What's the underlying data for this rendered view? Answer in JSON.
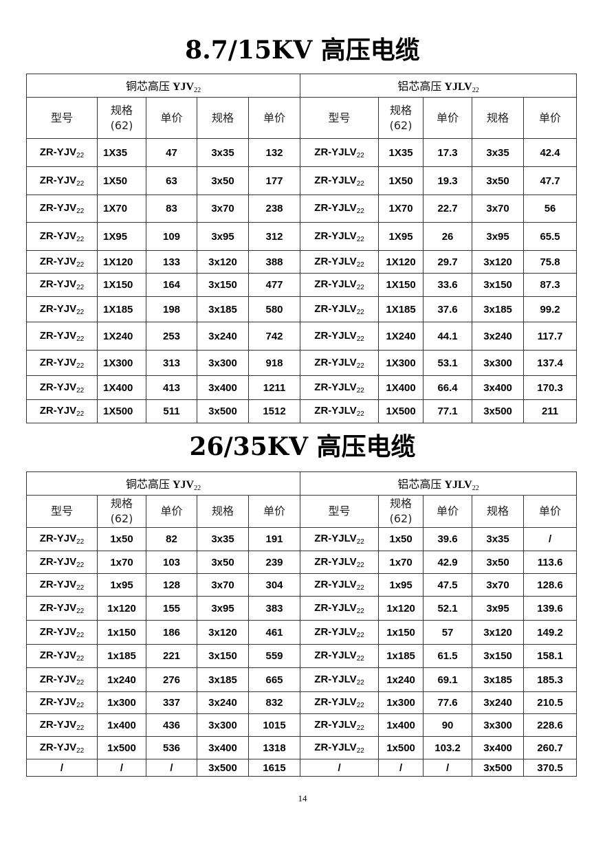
{
  "tables": [
    {
      "title": "8.7/15KV 高压电缆",
      "copper_header": {
        "prefix": "铜芯高压 ",
        "code": "YJV",
        "sub": "22"
      },
      "aluminum_header": {
        "prefix": "铝芯高压 ",
        "code": "YJLV",
        "sub": "22"
      },
      "columns": [
        "型号",
        "规格\n(62)",
        "单价",
        "规格",
        "单价",
        "型号",
        "规格\n(62)",
        "单价",
        "规格",
        "单价"
      ],
      "rows": [
        [
          [
            "ZR-YJV",
            "22"
          ],
          "1X35",
          "47",
          "3x35",
          "132",
          [
            "ZR-YJLV",
            "22"
          ],
          "1X35",
          "17.3",
          "3x35",
          "42.4"
        ],
        [
          [
            "ZR-YJV",
            "22"
          ],
          "1X50",
          "63",
          "3x50",
          "177",
          [
            "ZR-YJLV",
            "22"
          ],
          "1X50",
          "19.3",
          "3x50",
          "47.7"
        ],
        [
          [
            "ZR-YJV",
            "22"
          ],
          "1X70",
          "83",
          "3x70",
          "238",
          [
            "ZR-YJLV",
            "22"
          ],
          "1X70",
          "22.7",
          "3x70",
          "56"
        ],
        [
          [
            "ZR-YJV",
            "22"
          ],
          "1X95",
          "109",
          "3x95",
          "312",
          [
            "ZR-YJLV",
            "22"
          ],
          "1X95",
          "26",
          "3x95",
          "65.5"
        ],
        [
          [
            "ZR-YJV",
            "22"
          ],
          "1X120",
          "133",
          "3x120",
          "388",
          [
            "ZR-YJLV",
            "22"
          ],
          "1X120",
          "29.7",
          "3x120",
          "75.8"
        ],
        [
          [
            "ZR-YJV",
            "22"
          ],
          "1X150",
          "164",
          "3x150",
          "477",
          [
            "ZR-YJLV",
            "22"
          ],
          "1X150",
          "33.6",
          "3x150",
          "87.3"
        ],
        [
          [
            "ZR-YJV",
            "22"
          ],
          "1X185",
          "198",
          "3x185",
          "580",
          [
            "ZR-YJLV",
            "22"
          ],
          "1X185",
          "37.6",
          "3x185",
          "99.2"
        ],
        [
          [
            "ZR-YJV",
            "22"
          ],
          "1X240",
          "253",
          "3x240",
          "742",
          [
            "ZR-YJLV",
            "22"
          ],
          "1X240",
          "44.1",
          "3x240",
          "117.7"
        ],
        [
          [
            "ZR-YJV",
            "22"
          ],
          "1X300",
          "313",
          "3x300",
          "918",
          [
            "ZR-YJLV",
            "22"
          ],
          "1X300",
          "53.1",
          "3x300",
          "137.4"
        ],
        [
          [
            "ZR-YJV",
            "22"
          ],
          "1X400",
          "413",
          "3x400",
          "1211",
          [
            "ZR-YJLV",
            "22"
          ],
          "1X400",
          "66.4",
          "3x400",
          "170.3"
        ],
        [
          [
            "ZR-YJV",
            "22"
          ],
          "1X500",
          "511",
          "3x500",
          "1512",
          [
            "ZR-YJLV",
            "22"
          ],
          "1X500",
          "77.1",
          "3x500",
          "211"
        ]
      ]
    },
    {
      "title": "26/35KV 高压电缆",
      "copper_header": {
        "prefix": "铜芯高压 ",
        "code": "YJV",
        "sub": "22"
      },
      "aluminum_header": {
        "prefix": "铝芯高压 ",
        "code": "YJLV",
        "sub": "22"
      },
      "columns": [
        "型号",
        "规格\n(62)",
        "单价",
        "规格",
        "单价",
        "型号",
        "规格\n(62)",
        "单价",
        "规格",
        "单价"
      ],
      "rows": [
        [
          [
            "ZR-YJV",
            "22"
          ],
          "1x50",
          "82",
          "3x35",
          "191",
          [
            "ZR-YJLV",
            "22"
          ],
          "1x50",
          "39.6",
          "3x35",
          "/"
        ],
        [
          [
            "ZR-YJV",
            "22"
          ],
          "1x70",
          "103",
          "3x50",
          "239",
          [
            "ZR-YJLV",
            "22"
          ],
          "1x70",
          "42.9",
          "3x50",
          "113.6"
        ],
        [
          [
            "ZR-YJV",
            "22"
          ],
          "1x95",
          "128",
          "3x70",
          "304",
          [
            "ZR-YJLV",
            "22"
          ],
          "1x95",
          "47.5",
          "3x70",
          "128.6"
        ],
        [
          [
            "ZR-YJV",
            "22"
          ],
          "1x120",
          "155",
          "3x95",
          "383",
          [
            "ZR-YJLV",
            "22"
          ],
          "1x120",
          "52.1",
          "3x95",
          "139.6"
        ],
        [
          [
            "ZR-YJV",
            "22"
          ],
          "1x150",
          "186",
          "3x120",
          "461",
          [
            "ZR-YJLV",
            "22"
          ],
          "1x150",
          "57",
          "3x120",
          "149.2"
        ],
        [
          [
            "ZR-YJV",
            "22"
          ],
          "1x185",
          "221",
          "3x150",
          "559",
          [
            "ZR-YJLV",
            "22"
          ],
          "1x185",
          "61.5",
          "3x150",
          "158.1"
        ],
        [
          [
            "ZR-YJV",
            "22"
          ],
          "1x240",
          "276",
          "3x185",
          "665",
          [
            "ZR-YJLV",
            "22"
          ],
          "1x240",
          "69.1",
          "3x185",
          "185.3"
        ],
        [
          [
            "ZR-YJV",
            "22"
          ],
          "1x300",
          "337",
          "3x240",
          "832",
          [
            "ZR-YJLV",
            "22"
          ],
          "1x300",
          "77.6",
          "3x240",
          "210.5"
        ],
        [
          [
            "ZR-YJV",
            "22"
          ],
          "1x400",
          "436",
          "3x300",
          "1015",
          [
            "ZR-YJLV",
            "22"
          ],
          "1x400",
          "90",
          "3x300",
          "228.6"
        ],
        [
          [
            "ZR-YJV",
            "22"
          ],
          "1x500",
          "536",
          "3x400",
          "1318",
          [
            "ZR-YJLV",
            "22"
          ],
          "1x500",
          "103.2",
          "3x400",
          "260.7"
        ],
        [
          "/",
          "/",
          "/",
          "3x500",
          "1615",
          "/",
          "/",
          "/",
          "3x500",
          "370.5"
        ]
      ]
    }
  ],
  "page_number": "14"
}
